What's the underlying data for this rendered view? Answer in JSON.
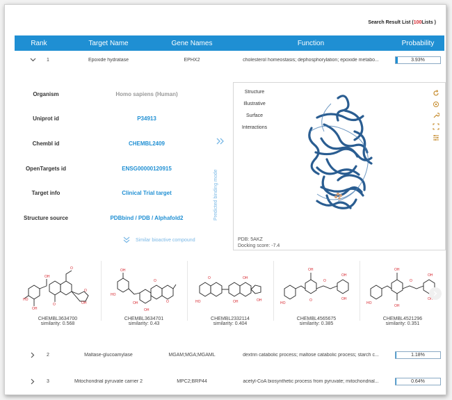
{
  "search": {
    "prefix": "Search Result List",
    "open": "(",
    "count": "100",
    "suffix": "Lists )"
  },
  "columns": [
    "Rank",
    "Target Name",
    "Gene Names",
    "Function",
    "Probability"
  ],
  "rows": [
    {
      "rank": "1",
      "target": "Epoxide hydratase",
      "gene": "EPHX2",
      "function": "cholesterol homeostasis; dephosphorylation; epoxide metabo...",
      "prob_text": "3.93%",
      "prob": 0.0393,
      "expanded": true
    },
    {
      "rank": "2",
      "target": "Maltase-glucoamylase",
      "gene": "MGAM;MGA;MGAML",
      "function": "dextrin catabolic process; maltose catabolic process; starch c...",
      "prob_text": "1.18%",
      "prob": 0.0118,
      "expanded": false
    },
    {
      "rank": "3",
      "target": "Mitochondrial pyruvate carrier 2",
      "gene": "MPC2;BRP44",
      "function": "acetyl-CoA biosynthetic process from pyruvate; mitochondrial...",
      "prob_text": "0.64%",
      "prob": 0.0064,
      "expanded": false
    }
  ],
  "detail": {
    "organism_label": "Organism",
    "organism": "Homo sapiens (Human)",
    "uniprot_label": "Uniprot id",
    "uniprot": "P34913",
    "chembl_label": "Chembl id",
    "chembl": "CHEMBL2409",
    "opentargets_label": "OpenTargets id",
    "opentargets": "ENSG00000120915",
    "targetinfo_label": "Target info",
    "targetinfo": "Clinical Trial target",
    "structure_label": "Structure source",
    "structure": "PDBbind / PDB / Alphafold2",
    "binding_mode": "Predicted binding mode",
    "similar": "Similar bioactive compound"
  },
  "viewer": {
    "menu": [
      "Structure",
      "Illustrative",
      "Surface",
      "Interactions"
    ],
    "pdb": "PDB: 5AKZ",
    "docking": "Docking score: -7.4",
    "protein_color": "#2a5d91"
  },
  "compounds": [
    {
      "name": "CHEMBL3634700",
      "sim": "similarity: 0.568"
    },
    {
      "name": "CHEMBL3634701",
      "sim": "similarity: 0.43"
    },
    {
      "name": "CHEMBL2332114",
      "sim": "similarity: 0.404"
    },
    {
      "name": "CHEMBL4565675",
      "sim": "similarity: 0.385"
    },
    {
      "name": "CHEMBL4521296",
      "sim": "similarity: 0.351"
    }
  ],
  "colors": {
    "accent": "#1f8fd3",
    "red": "#d7262e"
  }
}
